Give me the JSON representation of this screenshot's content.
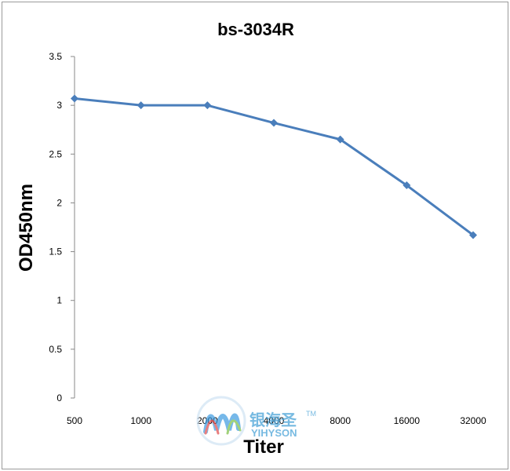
{
  "chart_data": {
    "type": "line",
    "title": "bs-3034R",
    "xlabel": "Titer",
    "ylabel": "OD450nm",
    "categories": [
      "500",
      "1000",
      "2000",
      "4000",
      "8000",
      "16000",
      "32000"
    ],
    "series": [
      {
        "values": [
          3.07,
          3.0,
          3.0,
          2.82,
          2.65,
          2.18,
          1.67
        ]
      }
    ],
    "yticks": [
      "0",
      "0.5",
      "1",
      "1.5",
      "2",
      "2.5",
      "3",
      "3.5"
    ],
    "ylim": [
      0,
      3.5
    ],
    "grid": false,
    "legend": "none",
    "line_color": "#4a7ebb"
  },
  "watermark": {
    "cn": "银海圣",
    "en": "YIHYSON",
    "tm": "TM"
  }
}
